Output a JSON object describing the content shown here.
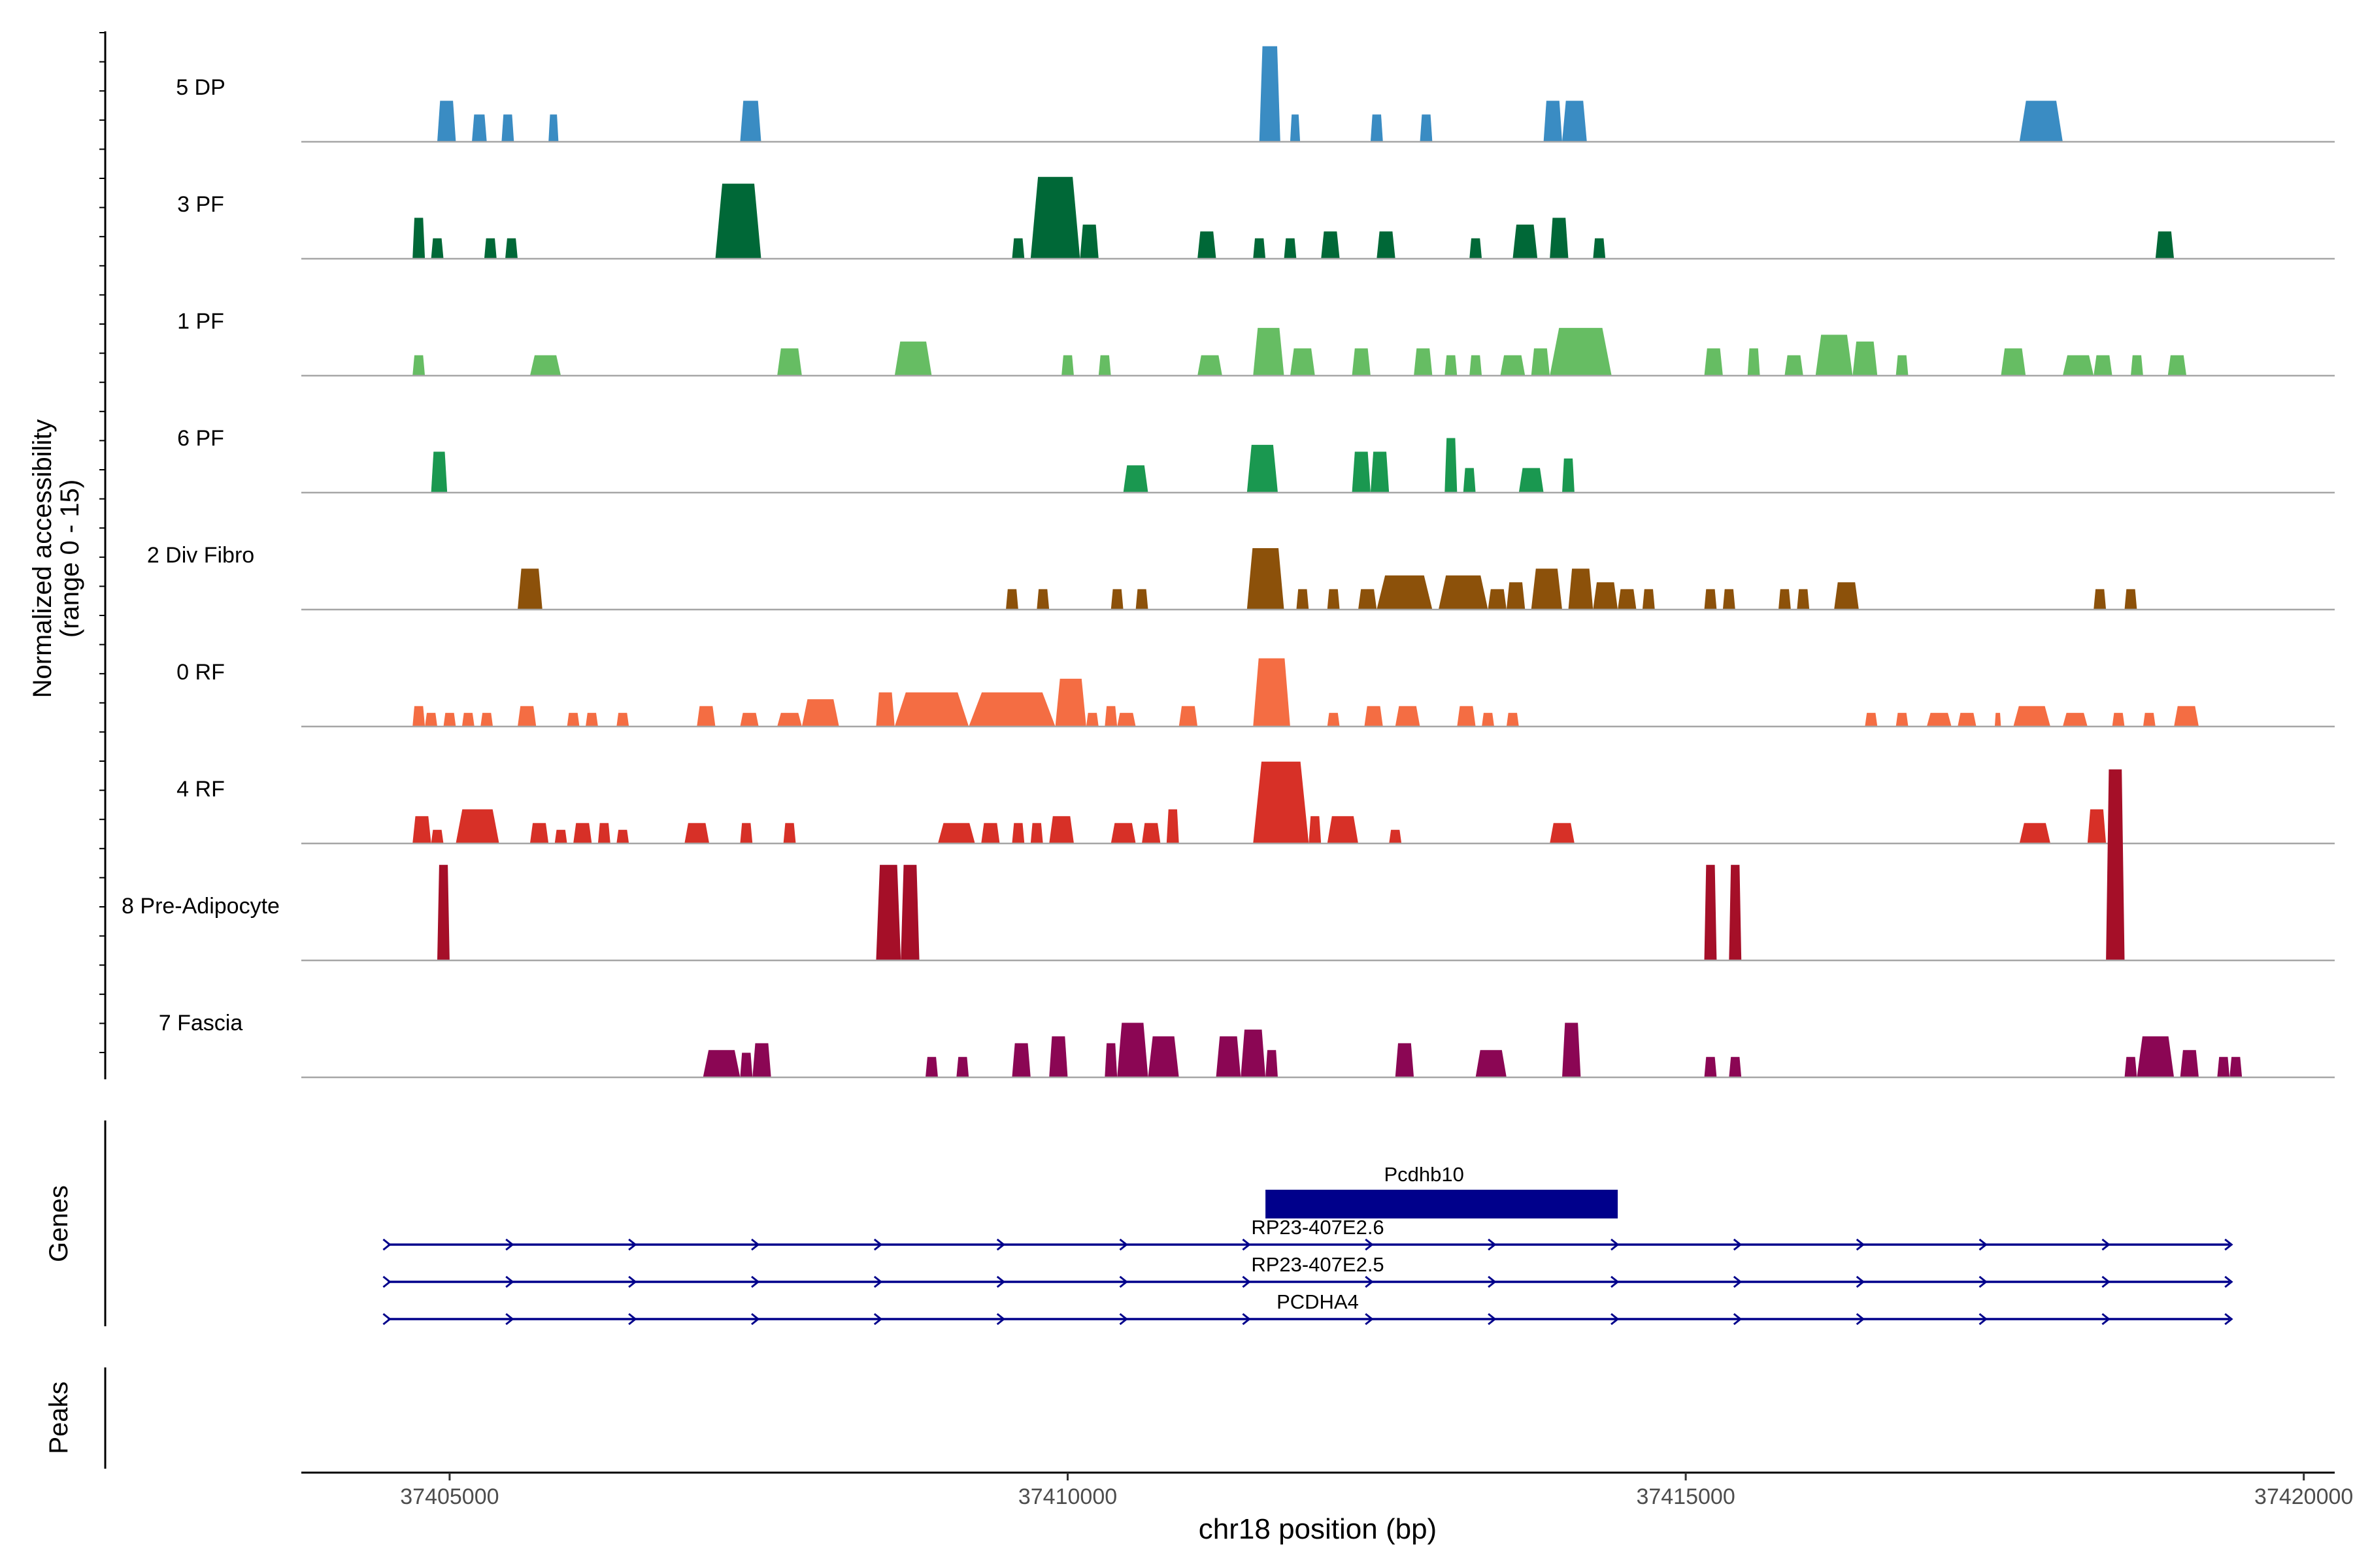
{
  "chart_data": {
    "type": "area",
    "chromosome": "chr18",
    "y_axis_label_line1": "Normalized accessibility",
    "y_axis_label_line2": "(range 0 - 15)",
    "y_range": [
      0,
      15
    ],
    "x_axis_label": "chr18 position (bp)",
    "x_range": [
      37403800,
      37420250
    ],
    "x_ticks": [
      37405000,
      37410000,
      37415000,
      37420000
    ],
    "x_tick_labels": [
      "37405000",
      "37410000",
      "37415000",
      "37420000"
    ],
    "tracks": [
      {
        "name": "5 DP",
        "color": "#3a8cc3",
        "peaks": [
          [
            37404900,
            37405050,
            3
          ],
          [
            37405180,
            37405300,
            2
          ],
          [
            37405420,
            37405520,
            2
          ],
          [
            37405800,
            37405880,
            2
          ],
          [
            37407350,
            37407520,
            3
          ],
          [
            37411550,
            37411720,
            7
          ],
          [
            37411800,
            37411880,
            2
          ],
          [
            37412450,
            37412550,
            2
          ],
          [
            37412850,
            37412950,
            2
          ],
          [
            37413850,
            37414000,
            3
          ],
          [
            37414000,
            37414200,
            3
          ],
          [
            37417700,
            37418050,
            3
          ]
        ]
      },
      {
        "name": "3 PF",
        "color": "#006837",
        "peaks": [
          [
            37404700,
            37404800,
            3
          ],
          [
            37404850,
            37404950,
            1.5
          ],
          [
            37405280,
            37405380,
            1.5
          ],
          [
            37405450,
            37405550,
            1.5
          ],
          [
            37407150,
            37407520,
            5.5
          ],
          [
            37409550,
            37409650,
            1.5
          ],
          [
            37409700,
            37410100,
            6
          ],
          [
            37410100,
            37410250,
            2.5
          ],
          [
            37411050,
            37411200,
            2
          ],
          [
            37411500,
            37411600,
            1.5
          ],
          [
            37411750,
            37411850,
            1.5
          ],
          [
            37412050,
            37412200,
            2
          ],
          [
            37412500,
            37412650,
            2
          ],
          [
            37413250,
            37413350,
            1.5
          ],
          [
            37413600,
            37413800,
            2.5
          ],
          [
            37413900,
            37414050,
            3
          ],
          [
            37414250,
            37414350,
            1.5
          ],
          [
            37418800,
            37418950,
            2
          ]
        ]
      },
      {
        "name": "1 PF",
        "color": "#66bd63",
        "peaks": [
          [
            37404700,
            37404800,
            1.5
          ],
          [
            37405650,
            37405900,
            1.5
          ],
          [
            37407650,
            37407850,
            2
          ],
          [
            37408600,
            37408900,
            2.5
          ],
          [
            37409950,
            37410050,
            1.5
          ],
          [
            37410250,
            37410350,
            1.5
          ],
          [
            37411050,
            37411250,
            1.5
          ],
          [
            37411500,
            37411750,
            3.5
          ],
          [
            37411800,
            37412000,
            2
          ],
          [
            37412300,
            37412450,
            2
          ],
          [
            37412800,
            37412950,
            2
          ],
          [
            37413050,
            37413150,
            1.5
          ],
          [
            37413250,
            37413350,
            1.5
          ],
          [
            37413500,
            37413700,
            1.5
          ],
          [
            37413750,
            37413900,
            2
          ],
          [
            37413900,
            37414400,
            3.5
          ],
          [
            37415150,
            37415300,
            2
          ],
          [
            37415500,
            37415600,
            2
          ],
          [
            37415800,
            37415950,
            1.5
          ],
          [
            37416050,
            37416350,
            3
          ],
          [
            37416350,
            37416550,
            2.5
          ],
          [
            37416700,
            37416800,
            1.5
          ],
          [
            37417550,
            37417750,
            2
          ],
          [
            37418050,
            37418300,
            1.5
          ],
          [
            37418300,
            37418450,
            1.5
          ],
          [
            37418600,
            37418700,
            1.5
          ],
          [
            37418900,
            37419050,
            1.5
          ]
        ]
      },
      {
        "name": "6 PF",
        "color": "#1a9850",
        "peaks": [
          [
            37404850,
            37404980,
            3
          ],
          [
            37410450,
            37410650,
            2
          ],
          [
            37411450,
            37411700,
            3.5
          ],
          [
            37412300,
            37412450,
            3
          ],
          [
            37412450,
            37412600,
            3
          ],
          [
            37413050,
            37413150,
            4
          ],
          [
            37413200,
            37413300,
            1.8
          ],
          [
            37413650,
            37413850,
            1.8
          ],
          [
            37414000,
            37414100,
            2.5
          ]
        ]
      },
      {
        "name": "2 Div Fibro",
        "color": "#8c510a",
        "peaks": [
          [
            37405550,
            37405750,
            3
          ],
          [
            37409500,
            37409600,
            1.5
          ],
          [
            37409750,
            37409850,
            1.5
          ],
          [
            37410350,
            37410450,
            1.5
          ],
          [
            37410550,
            37410650,
            1.5
          ],
          [
            37411450,
            37411750,
            4.5
          ],
          [
            37411850,
            37411950,
            1.5
          ],
          [
            37412100,
            37412200,
            1.5
          ],
          [
            37412350,
            37412500,
            1.5
          ],
          [
            37412500,
            37412950,
            2.5
          ],
          [
            37413000,
            37413400,
            2.5
          ],
          [
            37413400,
            37413550,
            1.5
          ],
          [
            37413550,
            37413700,
            2
          ],
          [
            37413750,
            37414000,
            3
          ],
          [
            37414050,
            37414250,
            3
          ],
          [
            37414250,
            37414450,
            2
          ],
          [
            37414450,
            37414600,
            1.5
          ],
          [
            37414650,
            37414750,
            1.5
          ],
          [
            37415150,
            37415250,
            1.5
          ],
          [
            37415300,
            37415400,
            1.5
          ],
          [
            37415750,
            37415850,
            1.5
          ],
          [
            37415900,
            37416000,
            1.5
          ],
          [
            37416200,
            37416400,
            2
          ],
          [
            37418300,
            37418400,
            1.5
          ],
          [
            37418550,
            37418650,
            1.5
          ]
        ]
      },
      {
        "name": "0 RF",
        "color": "#f46d43",
        "peaks": [
          [
            37404700,
            37404800,
            1.5
          ],
          [
            37404800,
            37404900,
            1
          ],
          [
            37404950,
            37405050,
            1
          ],
          [
            37405100,
            37405200,
            1
          ],
          [
            37405250,
            37405350,
            1
          ],
          [
            37405550,
            37405700,
            1.5
          ],
          [
            37405950,
            37406050,
            1
          ],
          [
            37406100,
            37406200,
            1
          ],
          [
            37406350,
            37406450,
            1
          ],
          [
            37407000,
            37407150,
            1.5
          ],
          [
            37407350,
            37407500,
            1
          ],
          [
            37407650,
            37407850,
            1
          ],
          [
            37407850,
            37408150,
            2
          ],
          [
            37408450,
            37408600,
            2.5
          ],
          [
            37408600,
            37409200,
            2.5
          ],
          [
            37409200,
            37409900,
            2.5
          ],
          [
            37409900,
            37410150,
            3.5
          ],
          [
            37410150,
            37410250,
            1
          ],
          [
            37410300,
            37410400,
            1.5
          ],
          [
            37410400,
            37410550,
            1
          ],
          [
            37410900,
            37411050,
            1.5
          ],
          [
            37411500,
            37411800,
            5
          ],
          [
            37412100,
            37412200,
            1
          ],
          [
            37412400,
            37412550,
            1.5
          ],
          [
            37412650,
            37412850,
            1.5
          ],
          [
            37413150,
            37413300,
            1.5
          ],
          [
            37413350,
            37413450,
            1
          ],
          [
            37413550,
            37413650,
            1
          ],
          [
            37416450,
            37416550,
            1
          ],
          [
            37416700,
            37416800,
            1
          ],
          [
            37416950,
            37417150,
            1
          ],
          [
            37417200,
            37417350,
            1
          ],
          [
            37417500,
            37417550,
            1
          ],
          [
            37417650,
            37417950,
            1.5
          ],
          [
            37418050,
            37418250,
            1
          ],
          [
            37418450,
            37418550,
            1
          ],
          [
            37418700,
            37418800,
            1
          ],
          [
            37418950,
            37419150,
            1.5
          ]
        ]
      },
      {
        "name": "4 RF",
        "color": "#d73027",
        "peaks": [
          [
            37404700,
            37404850,
            2
          ],
          [
            37404850,
            37404950,
            1
          ],
          [
            37405050,
            37405400,
            2.5
          ],
          [
            37405650,
            37405800,
            1.5
          ],
          [
            37405850,
            37405950,
            1
          ],
          [
            37406000,
            37406150,
            1.5
          ],
          [
            37406200,
            37406300,
            1.5
          ],
          [
            37406350,
            37406450,
            1
          ],
          [
            37406900,
            37407100,
            1.5
          ],
          [
            37407350,
            37407450,
            1.5
          ],
          [
            37407700,
            37407800,
            1.5
          ],
          [
            37408950,
            37409250,
            1.5
          ],
          [
            37409300,
            37409450,
            1.5
          ],
          [
            37409550,
            37409650,
            1.5
          ],
          [
            37409700,
            37409800,
            1.5
          ],
          [
            37409850,
            37410050,
            2
          ],
          [
            37410350,
            37410550,
            1.5
          ],
          [
            37410600,
            37410750,
            1.5
          ],
          [
            37410800,
            37410900,
            2.5
          ],
          [
            37411500,
            37411950,
            6
          ],
          [
            37411950,
            37412050,
            2
          ],
          [
            37412100,
            37412350,
            2
          ],
          [
            37412600,
            37412700,
            1
          ],
          [
            37413900,
            37414100,
            1.5
          ],
          [
            37417700,
            37417950,
            1.5
          ],
          [
            37418250,
            37418400,
            2.5
          ]
        ]
      },
      {
        "name": "8 Pre-Adipocyte",
        "color": "#a50f28",
        "peaks": [
          [
            37404900,
            37405000,
            7
          ],
          [
            37408450,
            37408650,
            7
          ],
          [
            37408650,
            37408800,
            7
          ],
          [
            37415150,
            37415250,
            7
          ],
          [
            37415350,
            37415450,
            7
          ],
          [
            37418400,
            37418550,
            14
          ]
        ]
      },
      {
        "name": "7 Fascia",
        "color": "#8b0654",
        "peaks": [
          [
            37407050,
            37407350,
            2
          ],
          [
            37407350,
            37407450,
            1.8
          ],
          [
            37407450,
            37407600,
            2.5
          ],
          [
            37408850,
            37408950,
            1.5
          ],
          [
            37409100,
            37409200,
            1.5
          ],
          [
            37409550,
            37409700,
            2.5
          ],
          [
            37409850,
            37410000,
            3
          ],
          [
            37410300,
            37410400,
            2.5
          ],
          [
            37410400,
            37410650,
            4
          ],
          [
            37410650,
            37410900,
            3
          ],
          [
            37411200,
            37411400,
            3
          ],
          [
            37411400,
            37411600,
            3.5
          ],
          [
            37411600,
            37411700,
            2
          ],
          [
            37412650,
            37412800,
            2.5
          ],
          [
            37413300,
            37413550,
            2
          ],
          [
            37414000,
            37414150,
            4
          ],
          [
            37415150,
            37415250,
            1.5
          ],
          [
            37415350,
            37415450,
            1.5
          ],
          [
            37418550,
            37418650,
            1.5
          ],
          [
            37418650,
            37418950,
            3
          ],
          [
            37419000,
            37419150,
            2
          ],
          [
            37419300,
            37419400,
            1.5
          ],
          [
            37419400,
            37419500,
            1.5
          ]
        ]
      }
    ],
    "genes_panel_label": "Genes",
    "genes": [
      {
        "name": "Pcdhb10",
        "type": "exon_block",
        "start": 37411600,
        "end": 37414450,
        "strand": "+",
        "color": "#00008b"
      },
      {
        "name": "RP23-407E2.6",
        "type": "intron_line",
        "start": 37404500,
        "end": 37419400,
        "strand": "+",
        "color": "#00008b"
      },
      {
        "name": "RP23-407E2.5",
        "type": "intron_line",
        "start": 37404500,
        "end": 37419400,
        "strand": "+",
        "color": "#00008b"
      },
      {
        "name": "PCDHA4",
        "type": "intron_line",
        "start": 37404500,
        "end": 37419400,
        "strand": "+",
        "color": "#00008b"
      }
    ],
    "peaks_panel_label": "Peaks",
    "peaks_panel_entries": []
  }
}
